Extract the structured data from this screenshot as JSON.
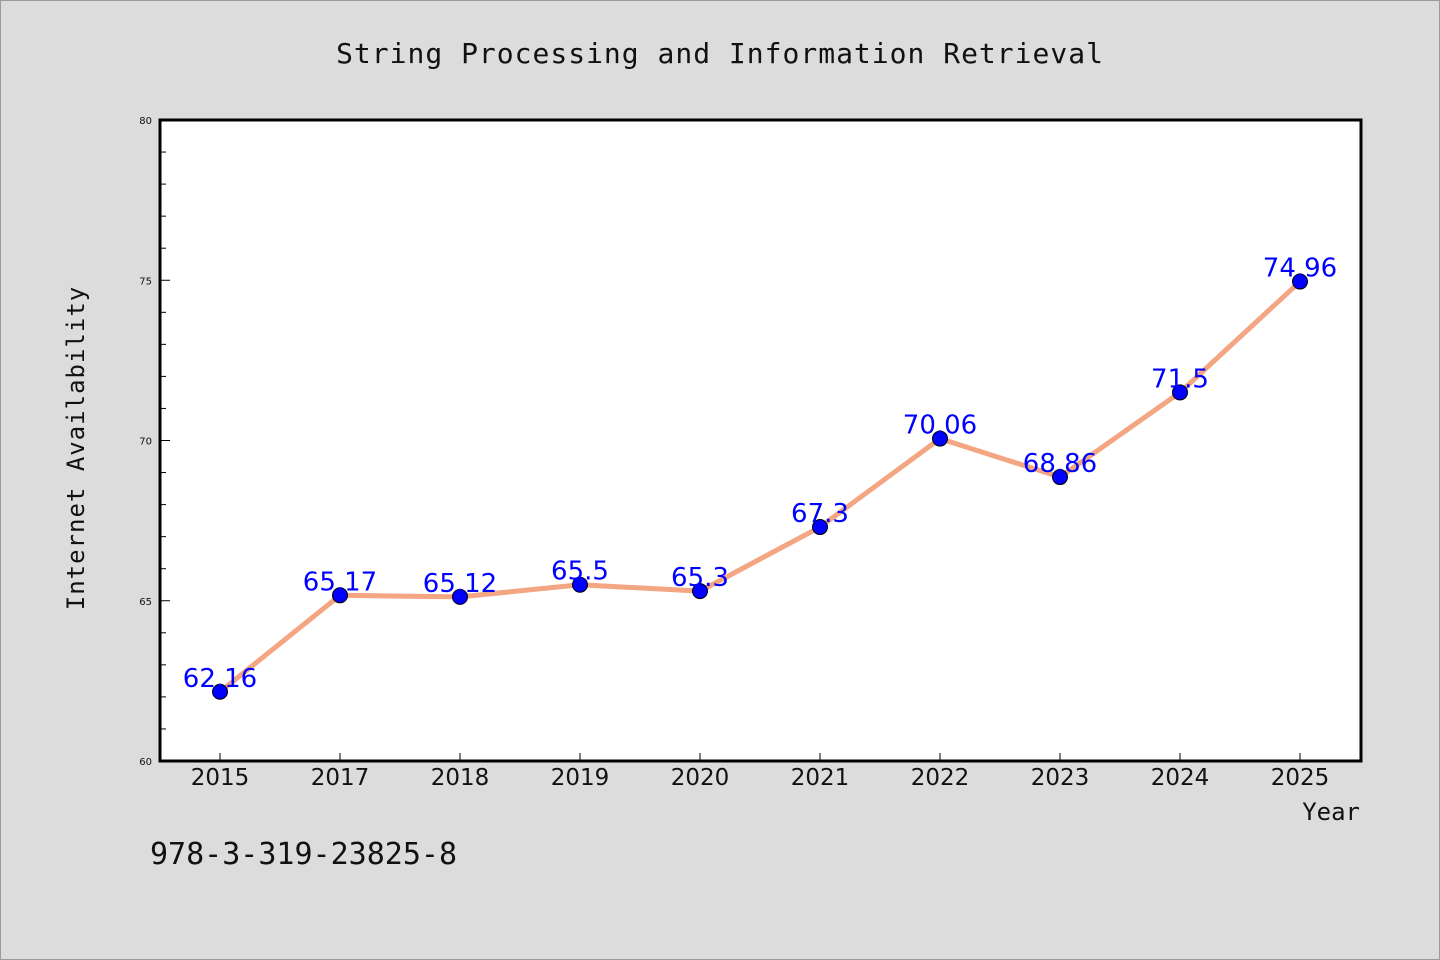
{
  "chart_data": {
    "type": "line",
    "title": "String Processing and Information Retrieval",
    "xlabel": "Year",
    "ylabel": "Internet Availability",
    "categories": [
      "2015",
      "2017",
      "2018",
      "2019",
      "2020",
      "2021",
      "2022",
      "2023",
      "2024",
      "2025"
    ],
    "series": [
      {
        "values": [
          62.16,
          65.17,
          65.12,
          65.5,
          65.3,
          67.3,
          70.06,
          68.86,
          71.5,
          74.96
        ],
        "labels": [
          "62.16",
          "65.17",
          "65.12",
          "65.5",
          "65.3",
          "67.3",
          "70.06",
          "68.86",
          "71.5",
          "74.96"
        ],
        "line_color": "#f4a582",
        "marker_color": "#0000ff",
        "label_color": "#0000ff"
      }
    ],
    "ylim": [
      60,
      80
    ],
    "yticks": [
      "60",
      "65",
      "70",
      "75",
      "80"
    ],
    "grid": false,
    "legend": "none"
  },
  "footer": {
    "isbn": "978-3-319-23825-8"
  }
}
